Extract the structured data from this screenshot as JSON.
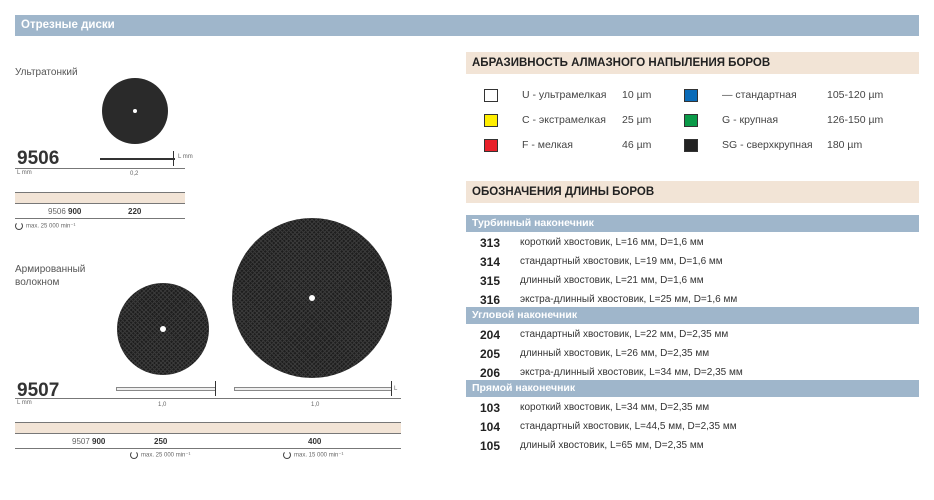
{
  "header": {
    "title": "Отрезные диски"
  },
  "left": {
    "ultrathin": {
      "label": "Ультратонкий",
      "code": "9506",
      "unit_label": "L mm",
      "thickness_marker": "L mm",
      "thickness": "0,2",
      "article_prefix": "9506",
      "article_suffix": "900",
      "size": "220",
      "max_speed": "max. 25 000 min⁻¹"
    },
    "reinforced": {
      "label_line1": "Армированный",
      "label_line2": "волокном",
      "code": "9507",
      "unit_label": "L mm",
      "thickness_marker": "L",
      "thickness_small": "1,0",
      "thickness_large": "1,0",
      "article_prefix": "9507",
      "article_suffix": "900",
      "size_small": "250",
      "size_large": "400",
      "max_speed_small": "max. 25 000 min⁻¹",
      "max_speed_large": "max. 15 000 min⁻¹"
    }
  },
  "abrasiveness": {
    "title": "АБРАЗИВНОСТЬ АЛМАЗНОГО НАПЫЛЕНИЯ БОРОВ",
    "items": [
      {
        "label": "U - ультрамелкая",
        "size": "10 µm",
        "color": "#ffffff"
      },
      {
        "label": "C - экстрамелкая",
        "size": "25 µm",
        "color": "#ffee00"
      },
      {
        "label": "F - мелкая",
        "size": "46 µm",
        "color": "#e8202a"
      },
      {
        "label": "—  стандартная",
        "size": "105-120 µm",
        "color": "#0a6bb8"
      },
      {
        "label": "G - крупная",
        "size": "126-150 µm",
        "color": "#0a9a48"
      },
      {
        "label": "SG - сверхкрупная",
        "size": "180 µm",
        "color": "#222222"
      }
    ]
  },
  "lengths": {
    "title": "ОБОЗНАЧЕНИЯ ДЛИНЫ БОРОВ",
    "sections": [
      {
        "name": "Турбинный наконечник",
        "rows": [
          {
            "code": "313",
            "desc": "короткий хвостовик, L=16 мм, D=1,6 мм"
          },
          {
            "code": "314",
            "desc": "стандартный хвостовик, L=19 мм, D=1,6 мм"
          },
          {
            "code": "315",
            "desc": "длинный хвостовик, L=21 мм, D=1,6 мм"
          },
          {
            "code": "316",
            "desc": "экстра-длинный хвостовик, L=25 мм, D=1,6 мм"
          }
        ]
      },
      {
        "name": "Угловой наконечник",
        "rows": [
          {
            "code": "204",
            "desc": "стандартный хвостовик, L=22 мм, D=2,35 мм"
          },
          {
            "code": "205",
            "desc": "длинный хвостовик, L=26 мм, D=2,35 мм"
          },
          {
            "code": "206",
            "desc": "экстра-длинный хвостовик, L=34 мм, D=2,35 мм"
          }
        ]
      },
      {
        "name": "Прямой наконечник",
        "rows": [
          {
            "code": "103",
            "desc": "короткий хвостовик, L=34 мм, D=2,35 мм"
          },
          {
            "code": "104",
            "desc": "стандартный хвостовик, L=44,5 мм, D=2,35 мм"
          },
          {
            "code": "105",
            "desc": "длиный хвостовик, L=65 мм, D=2,35 мм"
          }
        ]
      }
    ]
  }
}
